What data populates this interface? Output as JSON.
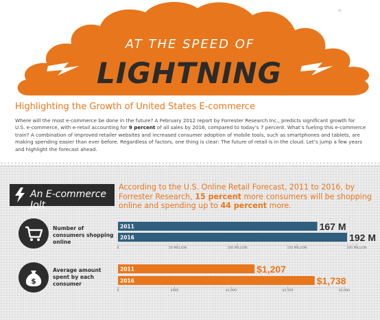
{
  "header": {
    "top_line": "AT THE SPEED OF",
    "big_word": "LIGHTNING",
    "colors": {
      "cloud": "#e8761c",
      "text": "#2b2b2b"
    }
  },
  "subtitle": "Highlighting the Growth of United States E-commerce",
  "intro": {
    "before_bold": "Where will the most e-commerce be done in the future? A February 2012 report by Forrester Research Inc., predicts significant growth for U.S. e-commerce, with e-retail accounting for ",
    "bold": "9 percent",
    "after_bold": " of all sales by 2016, compared to today’s 7 percent. What’s fueling this e-commerce train? A combination of improved retailer websites and increased consumer adoption of mobile tools, such as smartphones and tablets, are making spending easier than ever before. Regardless of factors, one thing is clear: The future of retail is in the cloud. Let’s jump a few years and highlight the forecast ahead."
  },
  "section": {
    "title": "An E-commerce Jolt",
    "icon": "lightning-bolt-icon",
    "callout": {
      "p1": "According to the U.S. Online Retail Forecast, 2011 to 2016, by Forrester Research, ",
      "b1": "15 percent",
      "p2": " more consumers will be shopping online and spending up to ",
      "b2": "44 percent",
      "p3": " more."
    }
  },
  "chart_data": [
    {
      "type": "bar",
      "orientation": "horizontal",
      "title": "Number of consumers shopping online",
      "icon": "shopping-cart-icon",
      "categories": [
        "2011",
        "2016"
      ],
      "values": [
        167,
        192
      ],
      "value_labels": [
        "167 M",
        "192 M"
      ],
      "xlim": [
        0,
        200
      ],
      "ticks": [
        0,
        50,
        100,
        150,
        200
      ],
      "tick_labels": [
        "0",
        "50 MILLION",
        "100 MILLION",
        "150 MILLION",
        "200 MILLION"
      ],
      "color": "#2f5f7c"
    },
    {
      "type": "bar",
      "orientation": "horizontal",
      "title": "Average amount spent by each consumer",
      "icon": "money-bag-icon",
      "categories": [
        "2011",
        "2016"
      ],
      "values": [
        1207,
        1738
      ],
      "value_labels": [
        "$1,207",
        "$1,738"
      ],
      "xlim": [
        0,
        2000
      ],
      "ticks": [
        0,
        500,
        1000,
        1500,
        2000
      ],
      "tick_labels": [
        "0",
        "$500",
        "$1,000",
        "$1,500",
        "$2,000"
      ],
      "color": "#e8761c"
    }
  ]
}
